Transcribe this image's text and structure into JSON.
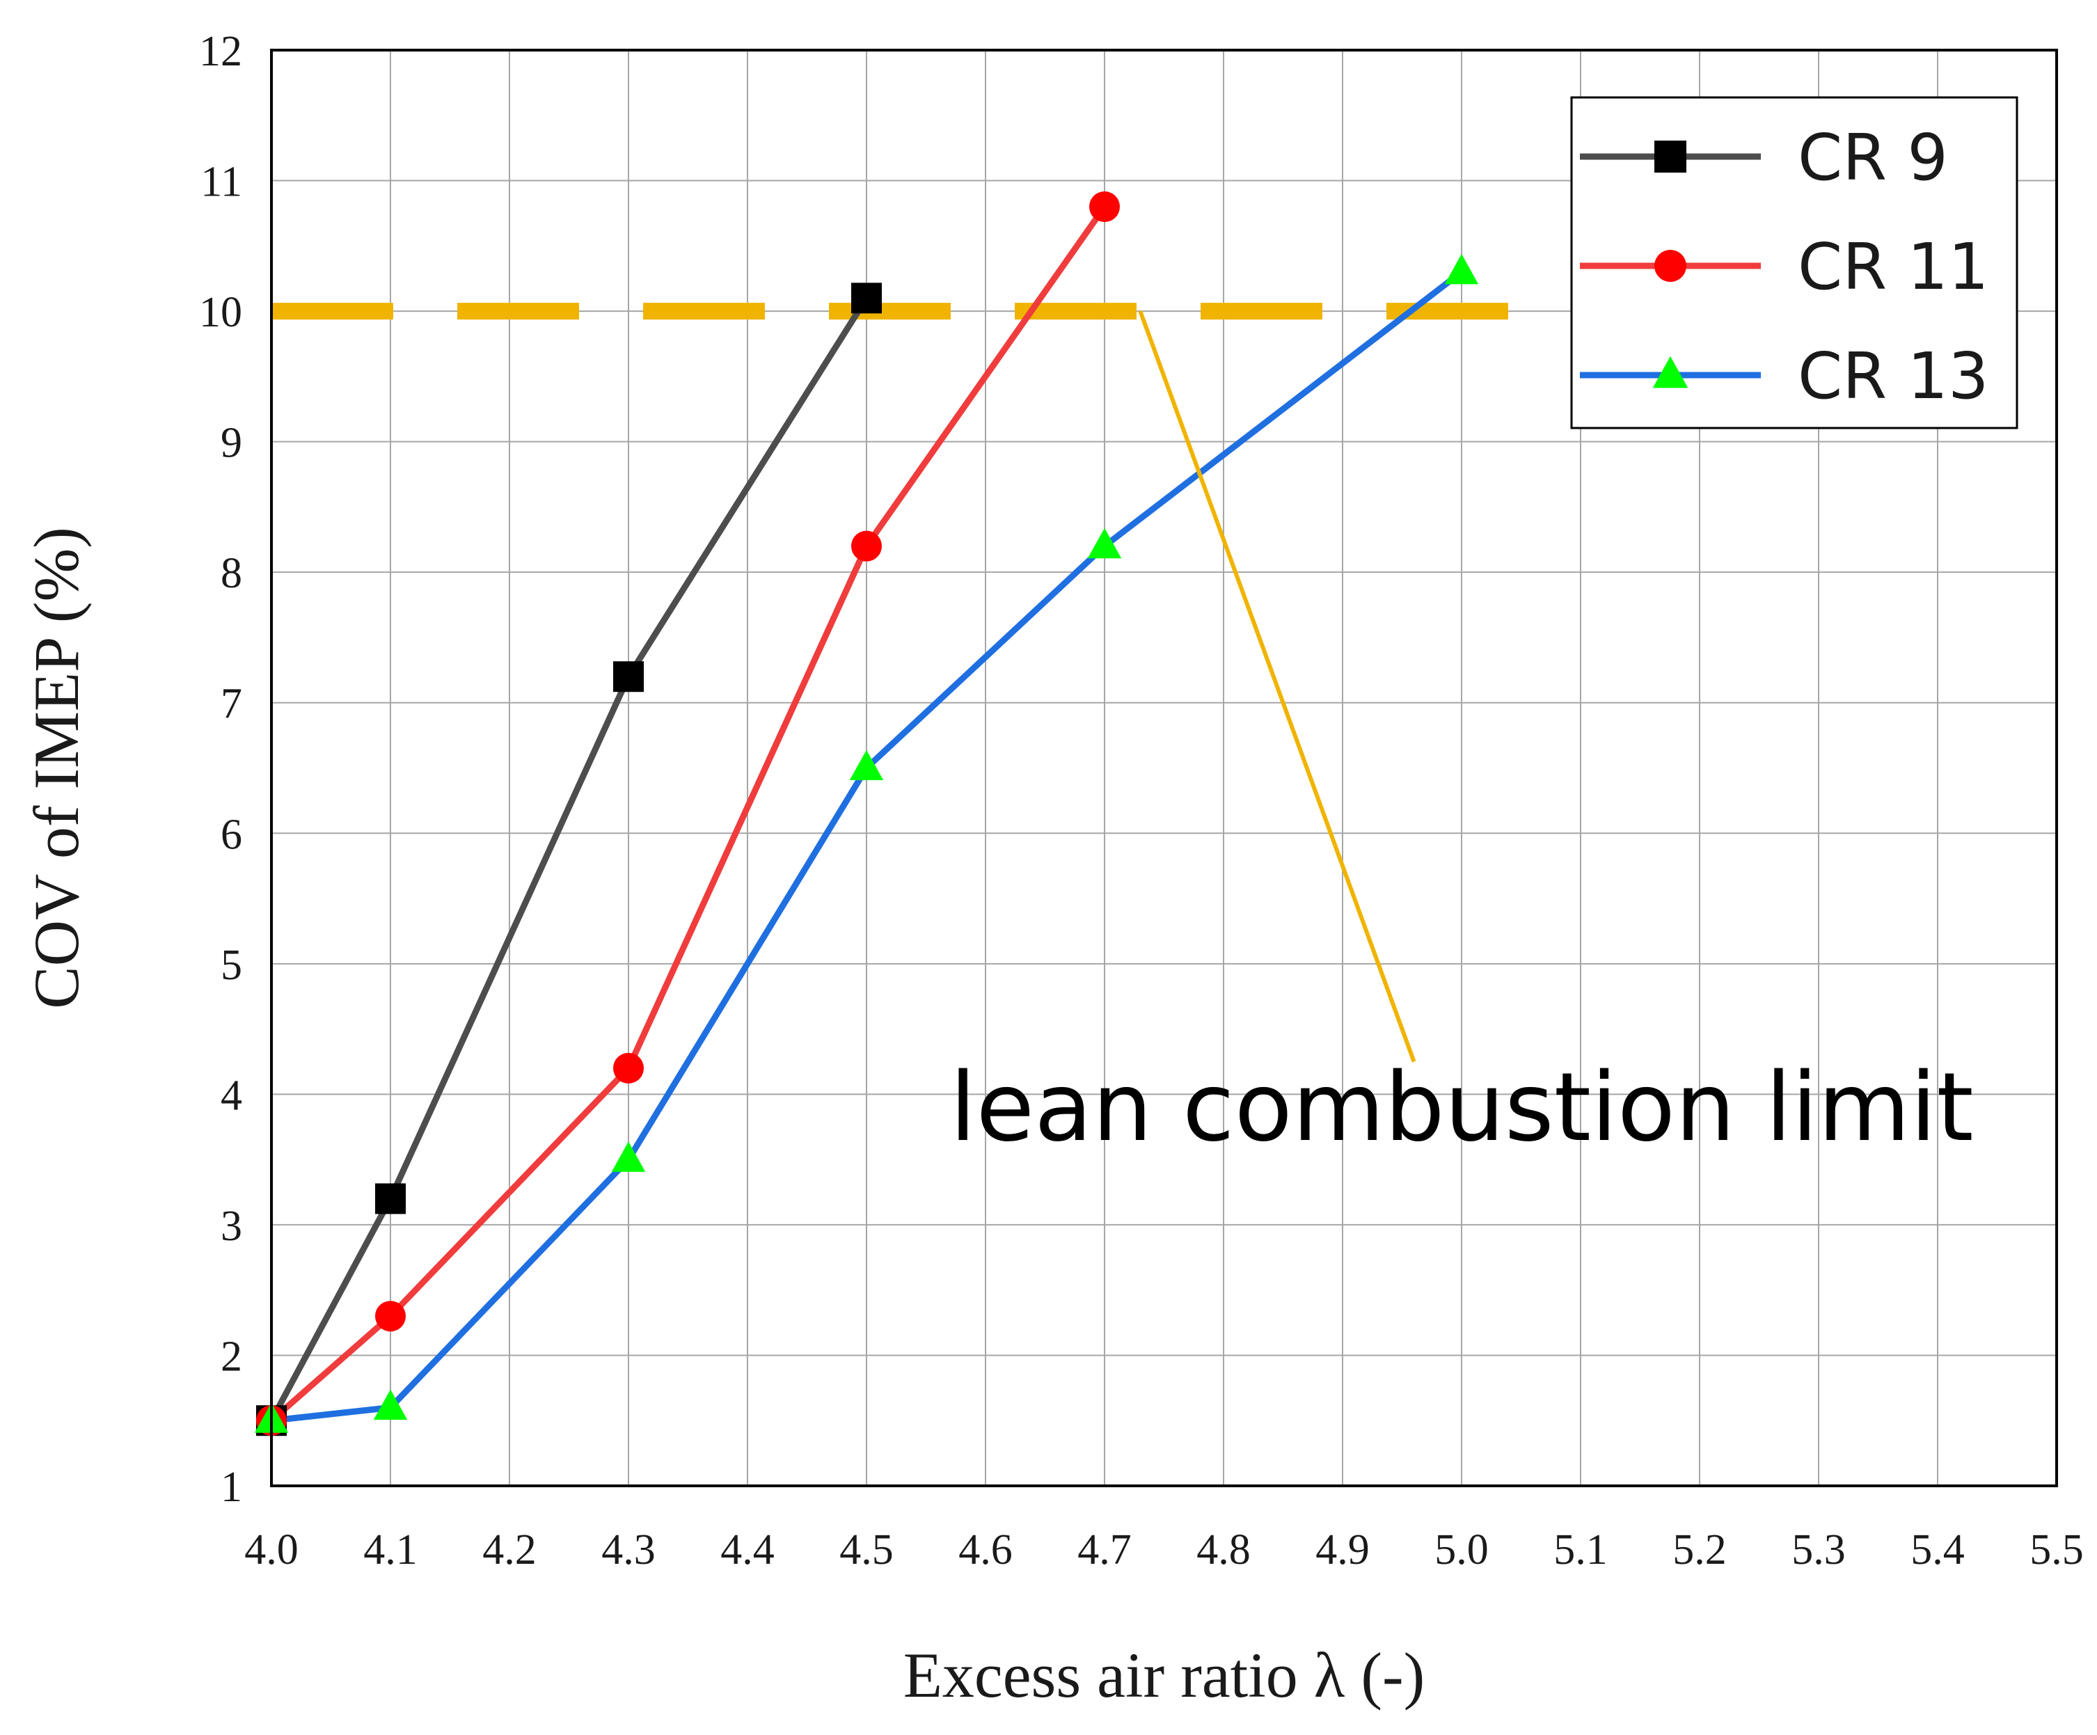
{
  "chart_data": {
    "type": "line",
    "title": "",
    "xlabel": "Excess air ratio λ (-)",
    "ylabel": "COV of IMEP (%)",
    "xlim": [
      4.0,
      5.5
    ],
    "ylim": [
      1,
      12
    ],
    "x_ticks": [
      "4.0",
      "4.1",
      "4.2",
      "4.3",
      "4.4",
      "4.5",
      "4.6",
      "4.7",
      "4.8",
      "4.9",
      "5.0",
      "5.1",
      "5.2",
      "5.3",
      "5.4",
      "5.5"
    ],
    "y_ticks": [
      "1",
      "2",
      "3",
      "4",
      "5",
      "6",
      "7",
      "8",
      "9",
      "10",
      "11",
      "12"
    ],
    "grid": true,
    "legend_position": "top-right",
    "series": [
      {
        "name": "CR 9",
        "color": "#4d4d4d",
        "marker_color": "#000000",
        "marker": "square",
        "x": [
          4.0,
          4.1,
          4.3,
          4.5
        ],
        "y": [
          1.5,
          3.2,
          7.2,
          10.1
        ]
      },
      {
        "name": "CR 11",
        "color": "#f03c3c",
        "marker_color": "#ff0000",
        "marker": "circle",
        "x": [
          4.0,
          4.1,
          4.3,
          4.5,
          4.7
        ],
        "y": [
          1.5,
          2.3,
          4.2,
          8.2,
          10.8
        ]
      },
      {
        "name": "CR 13",
        "color": "#1f6fe0",
        "marker_color": "#00ff00",
        "marker": "triangle",
        "x": [
          4.0,
          4.1,
          4.3,
          4.5,
          4.7,
          5.0
        ],
        "y": [
          1.5,
          1.6,
          3.5,
          6.5,
          8.2,
          10.3
        ]
      }
    ],
    "reference_line": {
      "y": 10,
      "x_range": [
        4.0,
        5.05
      ],
      "color": "#f0b400",
      "style": "dashed"
    },
    "annotation": {
      "text": "lean combustion limit",
      "color": "#000000",
      "leader_color": "#f0b400",
      "leader_from": [
        4.73,
        10
      ],
      "leader_to": [
        4.96,
        4.25
      ],
      "text_anchor": [
        4.57,
        3.65
      ]
    }
  }
}
